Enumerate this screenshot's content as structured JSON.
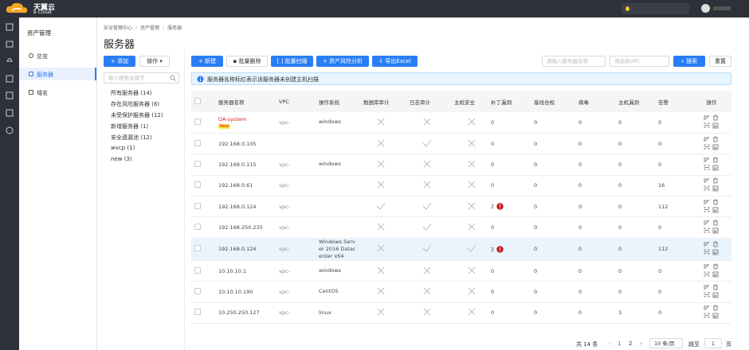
{
  "header": {
    "logo": "天翼云",
    "logo_sub": "e Cloud"
  },
  "sidebar": {
    "title": "资产管理",
    "items": [
      "总览",
      "服务器",
      "域名"
    ],
    "active": 1
  },
  "breadcrumb": [
    "安全管理中心",
    "资产管理",
    "服务器"
  ],
  "page_title": "服务器",
  "groups": {
    "add": "+ 添加",
    "ops": "操作",
    "search_placeholder": "输入搜索关键字",
    "items": [
      "所有服务器 (14)",
      "存在风险服务器 (6)",
      "未受保护服务器 (12)",
      "新增服务器 (1)",
      "安全遗漏池 (12)",
      "wvcp (1)",
      "new (3)"
    ]
  },
  "toolbar": {
    "new": "+ 新建",
    "batch_delete": "批量删除",
    "batch_scan": "批量扫描",
    "risk_analysis": "+ 资产风险分析",
    "export": "导出Excel",
    "name_placeholder": "请输入服务器名称",
    "vpc_placeholder": "请选择VPC",
    "search": "搜索",
    "reset": "重置"
  },
  "notice": "服务器名称标红表示该服务器未创建主机扫描",
  "table": {
    "columns": [
      "服务器名称",
      "VPC",
      "操作系统",
      "数据库审计",
      "日志审计",
      "主机安全",
      "补丁漏洞",
      "基线合规",
      "病毒",
      "主机漏洞",
      "告警",
      "操作"
    ],
    "rows": [
      {
        "name": "OA-system",
        "name_red": true,
        "tag": "New",
        "vpc": "vpc-",
        "os": "windows",
        "db_audit": false,
        "log_audit": false,
        "host_security": false,
        "patch": 0,
        "patch_alert": false,
        "baseline": 0,
        "virus": 0,
        "host_vuln": 0,
        "alarm": 0,
        "highlight": false
      },
      {
        "name": "192.168.0.105",
        "name_red": false,
        "tag": null,
        "vpc": null,
        "os": null,
        "db_audit": false,
        "log_audit": true,
        "host_security": false,
        "patch": 0,
        "patch_alert": false,
        "baseline": 0,
        "virus": 0,
        "host_vuln": 0,
        "alarm": 0,
        "highlight": false
      },
      {
        "name": "192.168.0.115",
        "name_red": false,
        "tag": null,
        "vpc": "vpc-",
        "os": "windows",
        "db_audit": false,
        "log_audit": false,
        "host_security": false,
        "patch": 0,
        "patch_alert": false,
        "baseline": 0,
        "virus": 0,
        "host_vuln": 0,
        "alarm": 0,
        "highlight": false
      },
      {
        "name": "192.168.0.61",
        "name_red": false,
        "tag": null,
        "vpc": "vpc-",
        "os": null,
        "db_audit": false,
        "log_audit": false,
        "host_security": false,
        "patch": 0,
        "patch_alert": false,
        "baseline": 0,
        "virus": 0,
        "host_vuln": 0,
        "alarm": 16,
        "highlight": false
      },
      {
        "name": "192.168.0.124",
        "name_red": false,
        "tag": null,
        "vpc": "vpc-",
        "os": null,
        "db_audit": true,
        "log_audit": true,
        "host_security": false,
        "patch": 2,
        "patch_alert": true,
        "baseline": 0,
        "virus": 0,
        "host_vuln": 0,
        "alarm": 112,
        "highlight": false
      },
      {
        "name": "192.168.250.235",
        "name_red": false,
        "tag": null,
        "vpc": "vpc-",
        "os": null,
        "db_audit": false,
        "log_audit": true,
        "host_security": false,
        "patch": 0,
        "patch_alert": false,
        "baseline": 0,
        "virus": 0,
        "host_vuln": 0,
        "alarm": 0,
        "highlight": false
      },
      {
        "name": "192.168.0.124",
        "name_red": false,
        "tag": null,
        "vpc": "vpc-",
        "os": "Windows Server 2016 Datacenter x64",
        "db_audit": false,
        "log_audit": true,
        "host_security": true,
        "patch": 2,
        "patch_alert": true,
        "baseline": 0,
        "virus": 0,
        "host_vuln": 0,
        "alarm": 112,
        "highlight": true
      },
      {
        "name": "10.10.10.1",
        "name_red": false,
        "tag": null,
        "vpc": "vpc-",
        "os": "windows",
        "db_audit": false,
        "log_audit": false,
        "host_security": false,
        "patch": 0,
        "patch_alert": false,
        "baseline": 0,
        "virus": 0,
        "host_vuln": 0,
        "alarm": 0,
        "highlight": false
      },
      {
        "name": "10.10.10.190",
        "name_red": false,
        "tag": null,
        "vpc": "vpc-",
        "os": "CentOS",
        "db_audit": false,
        "log_audit": false,
        "host_security": false,
        "patch": 0,
        "patch_alert": false,
        "baseline": 0,
        "virus": 0,
        "host_vuln": 0,
        "alarm": 0,
        "highlight": false
      },
      {
        "name": "10.250.250.127",
        "name_red": false,
        "tag": null,
        "vpc": "vpc-",
        "os": "linux",
        "db_audit": false,
        "log_audit": false,
        "host_security": false,
        "patch": 0,
        "patch_alert": false,
        "baseline": 0,
        "virus": 0,
        "host_vuln": 3,
        "alarm": 0,
        "highlight": false
      }
    ]
  },
  "pagination": {
    "total": "共 14 条",
    "pages": [
      "1",
      "2"
    ],
    "current": 0,
    "page_size": "10 条/页",
    "jump": "跳至",
    "jump_value": "1",
    "page_unit": "页"
  }
}
